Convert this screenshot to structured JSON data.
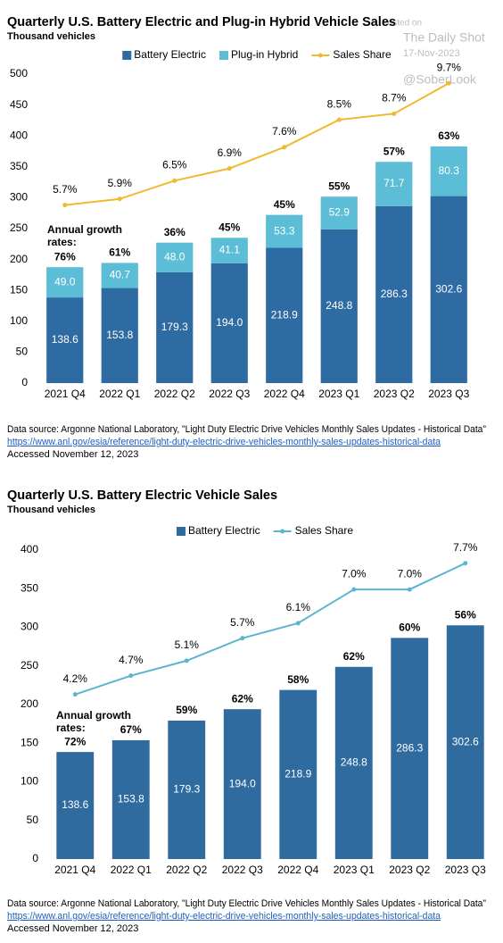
{
  "watermark": {
    "posted": "Posted on",
    "site": "The Daily Shot",
    "date": "17-Nov-2023",
    "handle": "@SoberLook"
  },
  "chart_data": [
    {
      "type": "bar",
      "stacked": true,
      "title": "Quarterly U.S. Battery Electric and Plug-in Hybrid Vehicle Sales",
      "subtitle": "Thousand vehicles",
      "categories": [
        "2021 Q4",
        "2022 Q1",
        "2022 Q2",
        "2022 Q3",
        "2022 Q4",
        "2023 Q1",
        "2023 Q2",
        "2023 Q3"
      ],
      "series": [
        {
          "name": "Battery Electric",
          "color": "#2f6ba3",
          "values": [
            138.6,
            153.8,
            179.3,
            194.0,
            218.9,
            248.8,
            286.3,
            302.6
          ],
          "value_labels": [
            "138.6",
            "153.8",
            "179.3",
            "194.0",
            "218.9",
            "248.8",
            "286.3",
            "302.6"
          ]
        },
        {
          "name": "Plug-in Hybrid",
          "color": "#5cbdd6",
          "values": [
            49.0,
            40.7,
            48.0,
            41.1,
            53.3,
            52.9,
            71.7,
            80.3
          ],
          "value_labels": [
            "49.0",
            "40.7",
            "48.0",
            "41.1",
            "53.3",
            "52.9",
            "71.7",
            "80.3"
          ]
        },
        {
          "name": "Sales Share",
          "color": "#f0b92f",
          "axis": "y2",
          "values": [
            5.7,
            5.9,
            6.5,
            6.9,
            7.6,
            8.5,
            8.7,
            9.7
          ],
          "value_labels": [
            "5.7%",
            "5.9%",
            "6.5%",
            "6.9%",
            "7.6%",
            "8.5%",
            "8.7%",
            "9.7%"
          ]
        }
      ],
      "ylim": [
        0,
        500
      ],
      "yticks": [
        0,
        50,
        100,
        150,
        200,
        250,
        300,
        350,
        400,
        450,
        500
      ],
      "y2lim": [
        -0.15,
        10.0
      ],
      "grid": false,
      "legend": "top",
      "growth_label": [
        "Annual growth",
        "rates:"
      ],
      "growth_rates": [
        "76%",
        "61%",
        "36%",
        "45%",
        "45%",
        "55%",
        "57%",
        "63%"
      ],
      "source": "Data source: Argonne National Laboratory, \"Light Duty Electric Drive Vehicles Monthly Sales Updates - Historical Data\"",
      "url": "https://www.anl.gov/esia/reference/light-duty-electric-drive-vehicles-monthly-sales-updates-historical-data",
      "accessed": "Accessed November 12, 2023"
    },
    {
      "type": "bar",
      "stacked": false,
      "title": "Quarterly U.S. Battery Electric Vehicle Sales",
      "subtitle": "Thousand vehicles",
      "categories": [
        "2021 Q4",
        "2022 Q1",
        "2022 Q2",
        "2022 Q3",
        "2022 Q4",
        "2023 Q1",
        "2023 Q2",
        "2023 Q3"
      ],
      "series": [
        {
          "name": "Battery Electric",
          "color": "#2f6b9e",
          "values": [
            138.6,
            153.8,
            179.3,
            194.0,
            218.9,
            248.8,
            286.3,
            302.6
          ],
          "value_labels": [
            "138.6",
            "153.8",
            "179.3",
            "194.0",
            "218.9",
            "248.8",
            "286.3",
            "302.6"
          ]
        },
        {
          "name": "Sales Share",
          "color": "#5bb5cf",
          "axis": "y2",
          "values": [
            4.2,
            4.7,
            5.1,
            5.7,
            6.1,
            7.0,
            7.0,
            7.7
          ],
          "value_labels": [
            "4.2%",
            "4.7%",
            "5.1%",
            "5.7%",
            "6.1%",
            "7.0%",
            "7.0%",
            "7.7%"
          ]
        }
      ],
      "ylim": [
        0,
        400
      ],
      "yticks": [
        0,
        50,
        100,
        150,
        200,
        250,
        300,
        350,
        400
      ],
      "y2lim": [
        -0.19,
        8.05
      ],
      "grid": false,
      "legend": "top",
      "growth_label": [
        "Annual growth",
        "rates:"
      ],
      "growth_rates": [
        "72%",
        "67%",
        "59%",
        "62%",
        "58%",
        "62%",
        "60%",
        "56%"
      ],
      "source": "Data source: Argonne National Laboratory, \"Light Duty Electric Drive Vehicles Monthly Sales Updates - Historical Data\"",
      "url": "https://www.anl.gov/esia/reference/light-duty-electric-drive-vehicles-monthly-sales-updates-historical-data",
      "accessed": "Accessed November 12, 2023"
    }
  ]
}
